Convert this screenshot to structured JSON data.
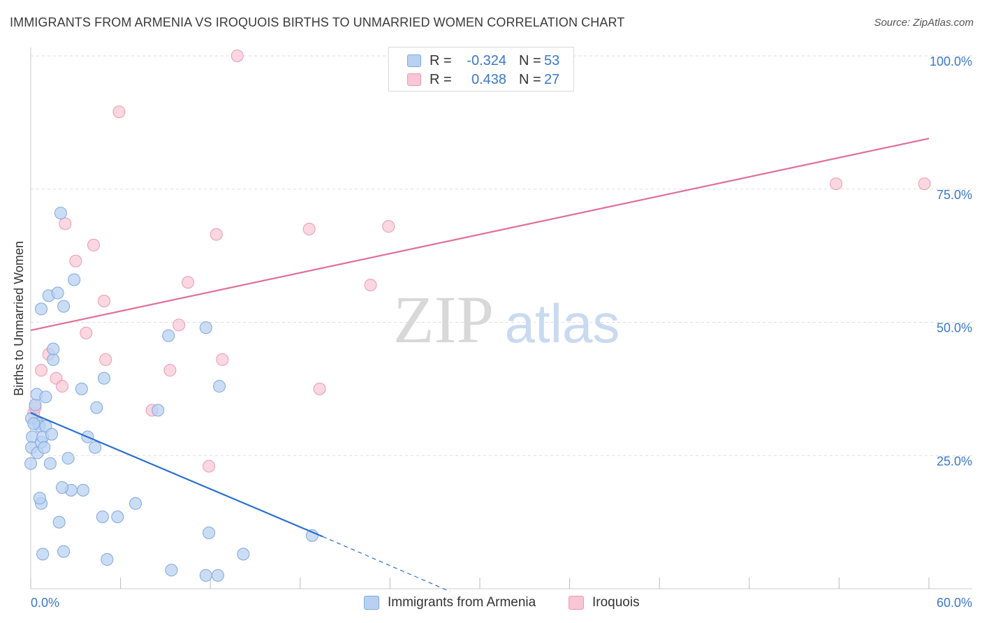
{
  "title": "IMMIGRANTS FROM ARMENIA VS IROQUOIS BIRTHS TO UNMARRIED WOMEN CORRELATION CHART",
  "source": "Source: ZipAtlas.com",
  "watermark": {
    "zip": "ZIP",
    "atlas": "atlas"
  },
  "legend": {
    "rows": [
      {
        "r_label": "R =",
        "r_value": "-0.324",
        "n_label": "N =",
        "n_value": "53"
      },
      {
        "r_label": "R =",
        "r_value": "0.438",
        "n_label": "N =",
        "n_value": "27"
      }
    ]
  },
  "bottom_legend": {
    "series1": "Immigrants from Armenia",
    "series2": "Iroquois"
  },
  "colors": {
    "blue_fill": "#b9d1f1",
    "blue_stroke": "#7ea6dc",
    "blue_line": "#2b6fd1",
    "pink_fill": "#f8c6d4",
    "pink_stroke": "#e99ab3",
    "pink_line": "#e06f96",
    "tick_text": "#3a78c9",
    "grid": "#dddddd"
  },
  "chart_data": {
    "type": "scatter",
    "title": "IMMIGRANTS FROM ARMENIA VS IROQUOIS BIRTHS TO UNMARRIED WOMEN CORRELATION CHART",
    "xlabel": "",
    "ylabel": "Births to Unmarried Women",
    "xlim": [
      0,
      60
    ],
    "ylim": [
      0,
      102
    ],
    "x_ticks": [
      0,
      6,
      12,
      18,
      24,
      30,
      36,
      42,
      48,
      54,
      60
    ],
    "x_tick_labels": [
      {
        "value": 0,
        "label": "0.0%"
      },
      {
        "value": 60,
        "label": "60.0%"
      }
    ],
    "y_ticks": [
      {
        "value": 25,
        "label": "25.0%"
      },
      {
        "value": 50,
        "label": "50.0%"
      },
      {
        "value": 75,
        "label": "75.0%"
      },
      {
        "value": 100,
        "label": "100.0%"
      }
    ],
    "grid": true,
    "series": [
      {
        "name": "Immigrants from Armenia",
        "points": [
          [
            0.05,
            32.0
          ],
          [
            0.1,
            28.5
          ],
          [
            0.05,
            26.5
          ],
          [
            0.0,
            23.5
          ],
          [
            0.3,
            34.5
          ],
          [
            0.4,
            36.5
          ],
          [
            0.45,
            25.5
          ],
          [
            0.5,
            31.0
          ],
          [
            0.6,
            30.5
          ],
          [
            0.7,
            27.5
          ],
          [
            0.8,
            28.5
          ],
          [
            0.9,
            26.5
          ],
          [
            1.0,
            36.0
          ],
          [
            1.0,
            30.5
          ],
          [
            1.3,
            23.5
          ],
          [
            1.4,
            29.0
          ],
          [
            1.5,
            43.0
          ],
          [
            1.5,
            45.0
          ],
          [
            0.7,
            52.5
          ],
          [
            1.2,
            55.0
          ],
          [
            1.8,
            55.5
          ],
          [
            2.2,
            53.0
          ],
          [
            2.0,
            70.5
          ],
          [
            2.9,
            58.0
          ],
          [
            3.4,
            37.5
          ],
          [
            3.5,
            18.5
          ],
          [
            2.5,
            24.5
          ],
          [
            2.7,
            18.5
          ],
          [
            2.1,
            19.0
          ],
          [
            1.9,
            12.5
          ],
          [
            2.2,
            7.0
          ],
          [
            0.7,
            16.0
          ],
          [
            0.6,
            17.0
          ],
          [
            0.8,
            6.5
          ],
          [
            4.3,
            26.5
          ],
          [
            4.4,
            34.0
          ],
          [
            4.9,
            39.5
          ],
          [
            4.8,
            13.5
          ],
          [
            5.1,
            5.5
          ],
          [
            5.8,
            13.5
          ],
          [
            7.0,
            16.0
          ],
          [
            8.5,
            33.5
          ],
          [
            9.2,
            47.5
          ],
          [
            9.4,
            3.5
          ],
          [
            11.7,
            2.5
          ],
          [
            11.7,
            49.0
          ],
          [
            11.9,
            10.5
          ],
          [
            12.6,
            38.0
          ],
          [
            12.5,
            2.5
          ],
          [
            14.2,
            6.5
          ],
          [
            18.8,
            10.0
          ],
          [
            3.8,
            28.5
          ],
          [
            0.2,
            31.0
          ]
        ],
        "trend": {
          "x": [
            0,
            19.5
          ],
          "y": [
            33.0,
            9.8
          ],
          "dashed_extension": {
            "x": [
              19.5,
              28.0
            ],
            "y": [
              9.8,
              -0.5
            ]
          }
        }
      },
      {
        "name": "Iroquois",
        "points": [
          [
            0.2,
            33.0
          ],
          [
            0.3,
            34.0
          ],
          [
            0.7,
            41.0
          ],
          [
            1.2,
            44.0
          ],
          [
            1.7,
            39.5
          ],
          [
            2.1,
            38.0
          ],
          [
            2.3,
            68.5
          ],
          [
            3.0,
            61.5
          ],
          [
            3.7,
            48.0
          ],
          [
            4.2,
            64.5
          ],
          [
            4.9,
            54.0
          ],
          [
            5.0,
            43.0
          ],
          [
            5.9,
            89.5
          ],
          [
            8.1,
            33.5
          ],
          [
            9.3,
            41.0
          ],
          [
            9.9,
            49.5
          ],
          [
            10.5,
            57.5
          ],
          [
            11.9,
            23.0
          ],
          [
            12.4,
            66.5
          ],
          [
            12.8,
            43.0
          ],
          [
            13.8,
            100.0
          ],
          [
            18.6,
            67.5
          ],
          [
            19.3,
            37.5
          ],
          [
            22.7,
            57.0
          ],
          [
            23.9,
            68.0
          ],
          [
            53.8,
            76.0
          ],
          [
            59.7,
            76.0
          ]
        ],
        "trend": {
          "x": [
            0,
            60
          ],
          "y": [
            48.5,
            84.5
          ]
        }
      }
    ]
  }
}
